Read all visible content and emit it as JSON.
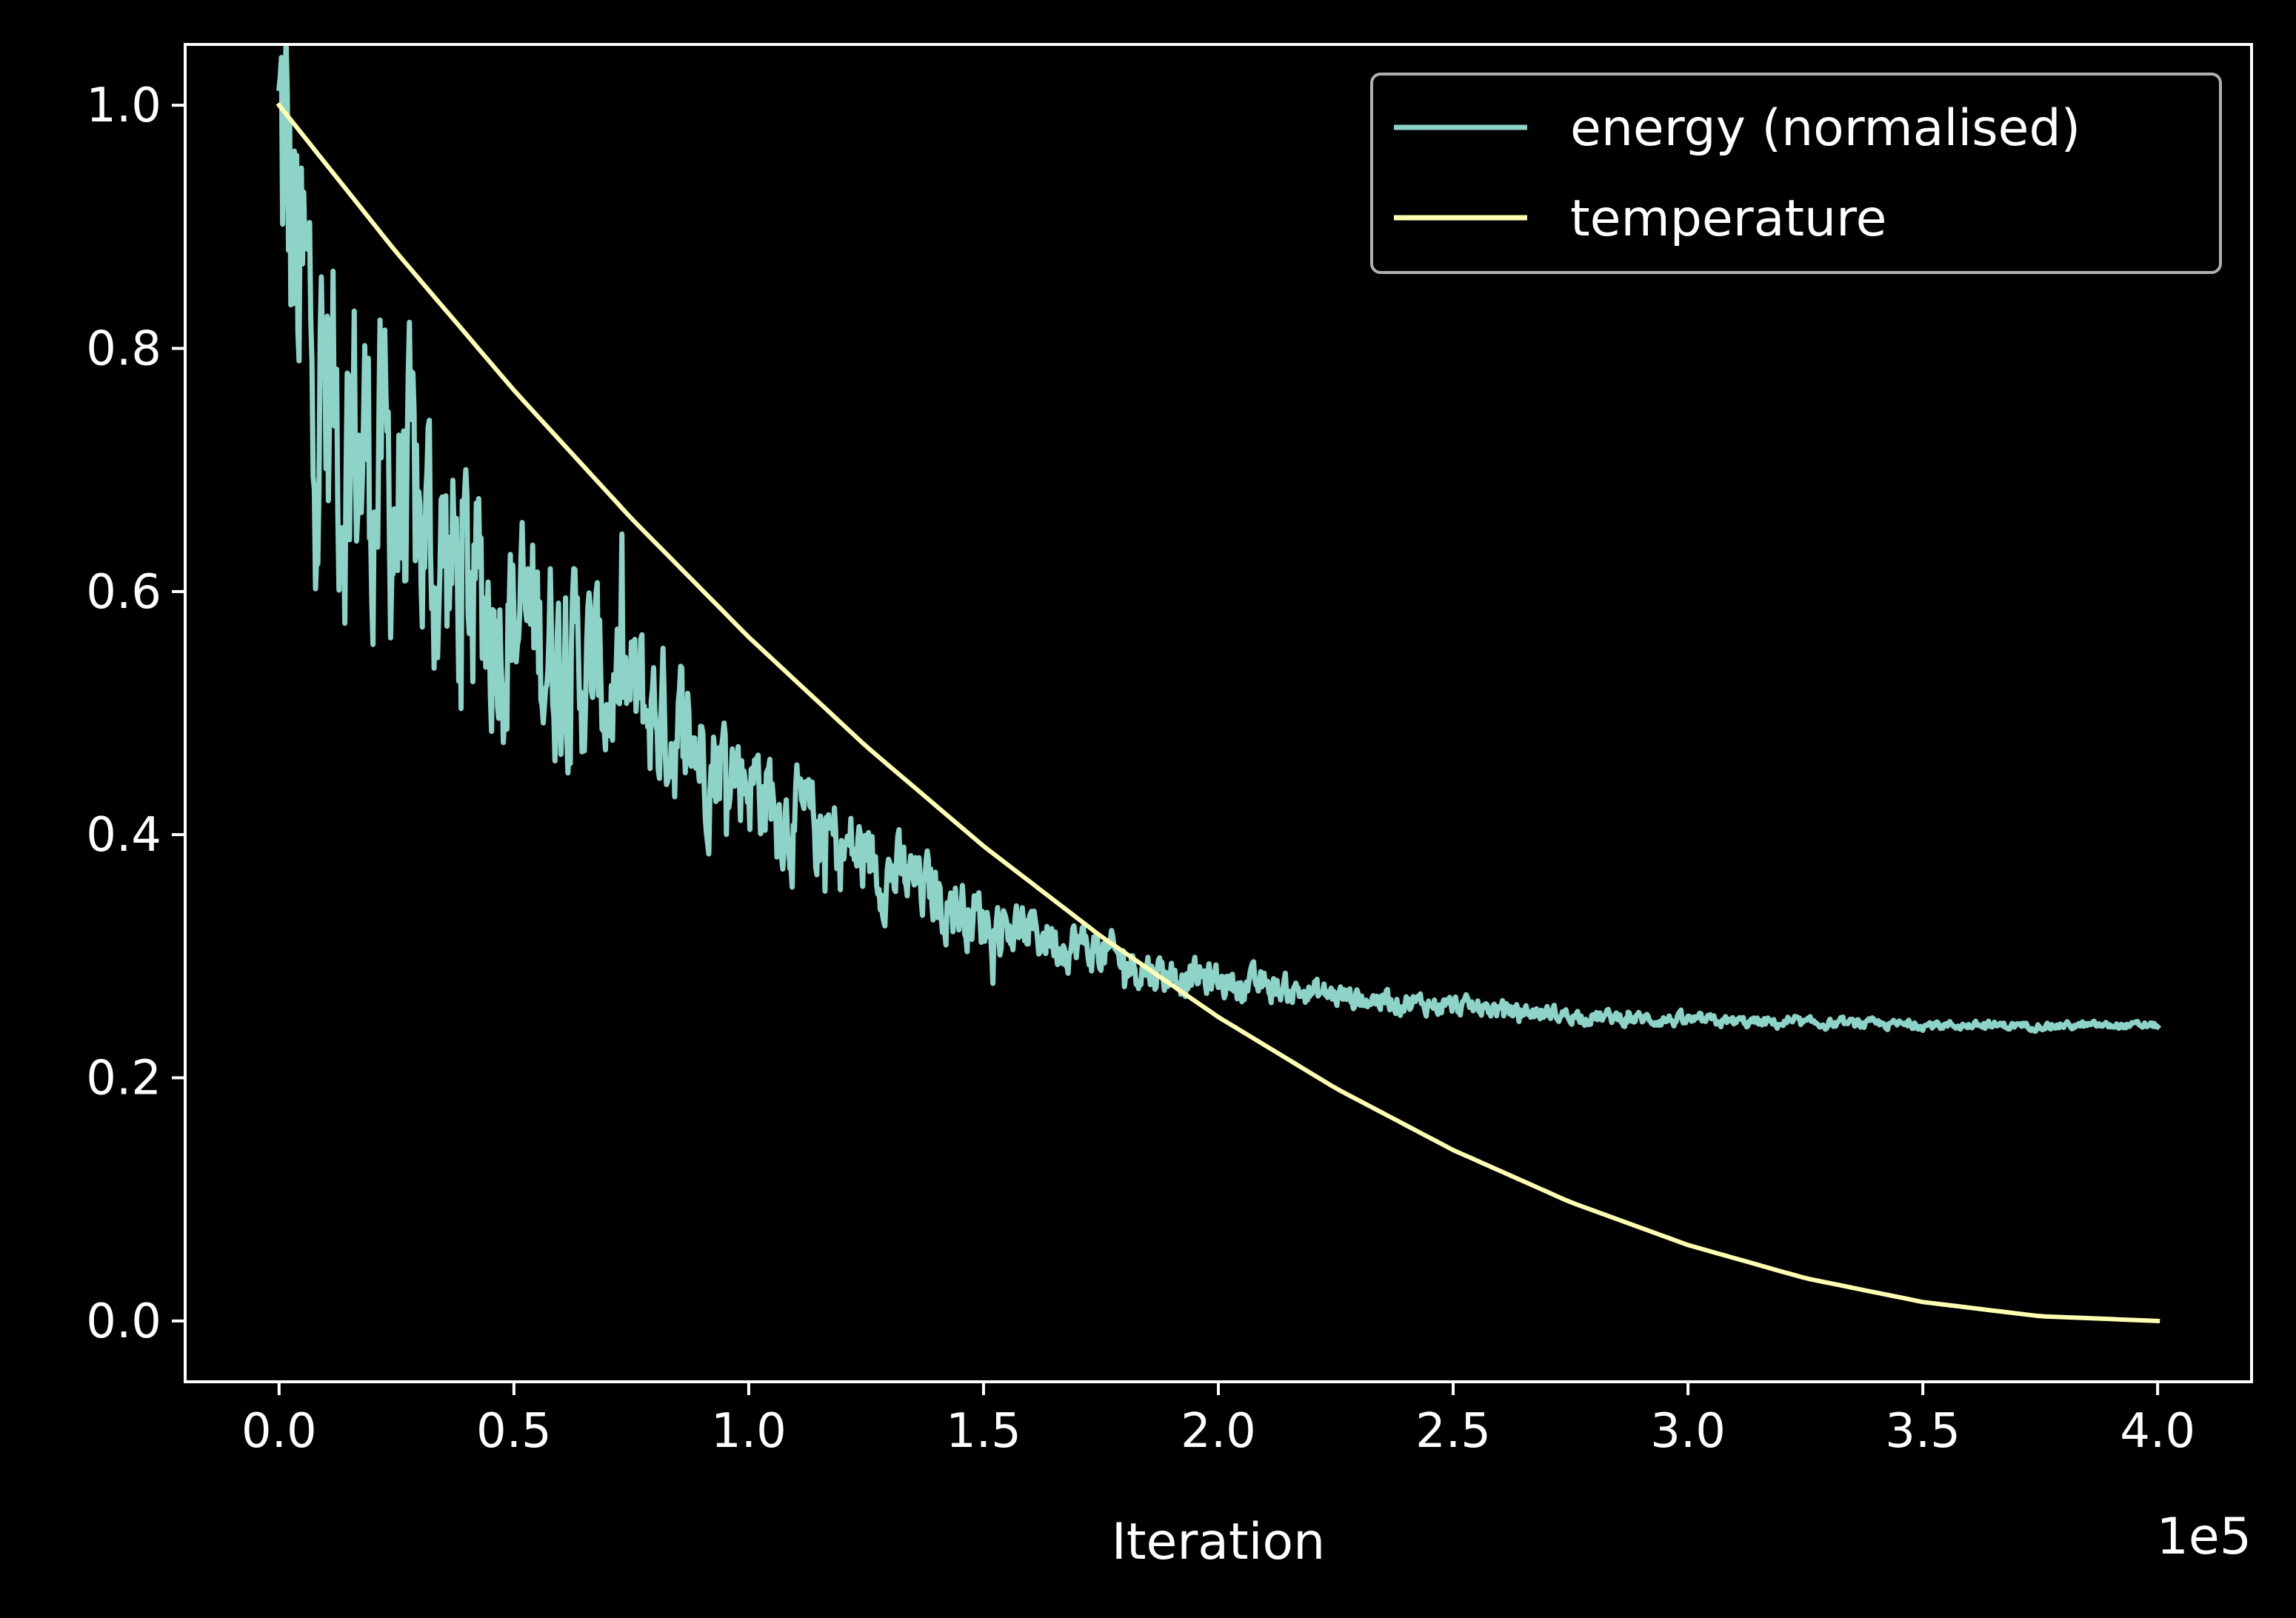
{
  "chart_data": {
    "type": "line",
    "xlabel": "Iteration",
    "ylabel": "",
    "x_offset_text": "1e5",
    "xlim": [
      -0.2,
      4.2
    ],
    "ylim": [
      -0.05,
      1.05
    ],
    "x_ticks": [
      0.0,
      0.5,
      1.0,
      1.5,
      2.0,
      2.5,
      3.0,
      3.5,
      4.0
    ],
    "x_tick_labels": [
      "0.0",
      "0.5",
      "1.0",
      "1.5",
      "2.0",
      "2.5",
      "3.0",
      "3.5",
      "4.0"
    ],
    "y_ticks": [
      0.0,
      0.2,
      0.4,
      0.6,
      0.8,
      1.0
    ],
    "y_tick_labels": [
      "0.0",
      "0.2",
      "0.4",
      "0.6",
      "0.8",
      "1.0"
    ],
    "grid": false,
    "legend_position": "top-right",
    "background": "#000000",
    "series": [
      {
        "name": "energy (normalised)",
        "color": "#8dd3c7",
        "noisy": true,
        "x": [
          0.0,
          0.05,
          0.1,
          0.2,
          0.3,
          0.4,
          0.5,
          0.6,
          0.7,
          0.8,
          0.9,
          1.0,
          1.1,
          1.2,
          1.3,
          1.4,
          1.5,
          1.6,
          1.7,
          1.8,
          1.9,
          2.0,
          2.2,
          2.4,
          2.6,
          2.8,
          3.0,
          3.2,
          3.4,
          3.6,
          3.8,
          4.0
        ],
        "y": [
          0.97,
          0.82,
          0.76,
          0.7,
          0.65,
          0.6,
          0.58,
          0.55,
          0.52,
          0.5,
          0.47,
          0.45,
          0.41,
          0.39,
          0.37,
          0.35,
          0.33,
          0.32,
          0.31,
          0.295,
          0.285,
          0.28,
          0.27,
          0.262,
          0.256,
          0.25,
          0.247,
          0.245,
          0.244,
          0.243,
          0.243,
          0.243
        ]
      },
      {
        "name": "temperature",
        "color": "#ffffb3",
        "x": [
          0.0,
          0.25,
          0.5,
          0.75,
          1.0,
          1.25,
          1.5,
          1.75,
          2.0,
          2.25,
          2.5,
          2.75,
          3.0,
          3.25,
          3.5,
          3.75,
          4.0
        ],
        "y": [
          1.0,
          0.8789,
          0.7656,
          0.6602,
          0.5625,
          0.4727,
          0.3906,
          0.3164,
          0.25,
          0.1914,
          0.1406,
          0.0977,
          0.0625,
          0.0352,
          0.0156,
          0.0039,
          0.0
        ]
      }
    ]
  }
}
